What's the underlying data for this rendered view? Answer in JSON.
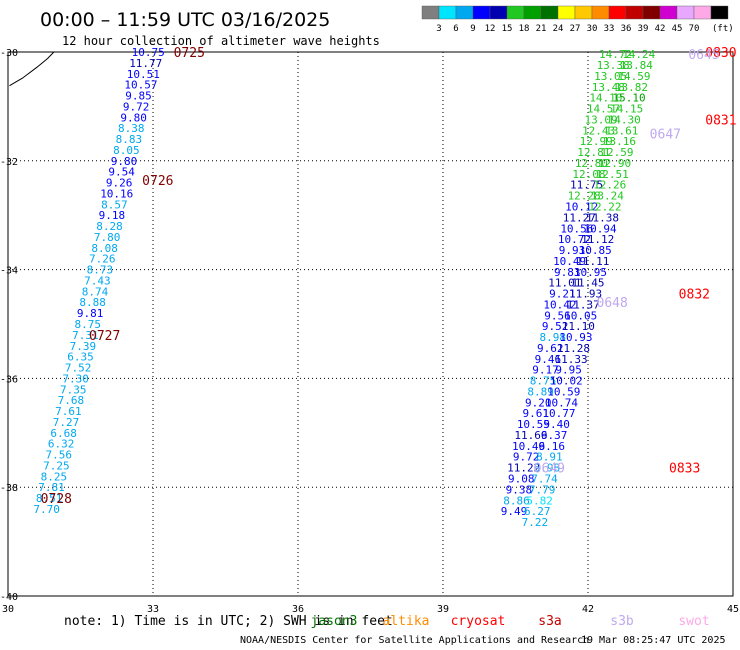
{
  "title": "00:00 – 11:59 UTC 03/16/2025",
  "subtitle": "12 hour collection of altimeter wave heights",
  "color_scale": {
    "unit": "(ft)",
    "labels": [
      "3",
      "6",
      "9",
      "12",
      "15",
      "18",
      "21",
      "24",
      "27",
      "30",
      "33",
      "36",
      "39",
      "42",
      "45",
      "70"
    ],
    "colors": [
      "#7f7f7f",
      "#00e5ff",
      "#00a8f0",
      "#0000ff",
      "#0000b0",
      "#22c822",
      "#00a000",
      "#007000",
      "#ffff00",
      "#ffc800",
      "#ff8c00",
      "#ff0000",
      "#c00000",
      "#800000",
      "#d000d0",
      "#e8a8ff",
      "#ffa8e8",
      "#000000"
    ]
  },
  "footer_note": "note: 1) Time is in UTC; 2) SWH is in feet",
  "credit": "NOAA/NESDIS Center for Satellite Applications and Research",
  "timestamp": "19 Mar 08:25:47 UTC 2025",
  "legend": [
    {
      "name": "jason3",
      "color": "#007000"
    },
    {
      "name": "altika",
      "color": "#ff8c00"
    },
    {
      "name": "cryosat",
      "color": "#ff0000"
    },
    {
      "name": "s3a",
      "color": "#c00000"
    },
    {
      "name": "s3b",
      "color": "#c0a8f0"
    },
    {
      "name": "swot",
      "color": "#ffa8e8"
    }
  ],
  "chart_data": {
    "type": "scatter",
    "title": "00:00 – 11:59 UTC 03/16/2025",
    "xlim": [
      30,
      45
    ],
    "ylim": [
      -40,
      -30
    ],
    "x_ticks": [
      "30",
      "33",
      "36",
      "39",
      "42",
      "45"
    ],
    "y_ticks": [
      "-30",
      "-32",
      "-34",
      "-36",
      "-38",
      "-40"
    ],
    "grid": true,
    "legend_position": "bottom",
    "coastline": [
      [
        30.03,
        -30.62
      ],
      [
        30.3,
        -30.48
      ],
      [
        30.6,
        -30.28
      ],
      [
        30.82,
        -30.12
      ],
      [
        30.95,
        -30.0
      ]
    ],
    "track_left": [
      {
        "x": 32.9,
        "y": -30.0,
        "v": "10.75",
        "c": "#0000ff"
      },
      {
        "x": 32.85,
        "y": -30.2,
        "v": "11.77",
        "c": "#0000b0"
      },
      {
        "x": 32.8,
        "y": -30.4,
        "v": "10.51",
        "c": "#0000ff"
      },
      {
        "x": 32.75,
        "y": -30.6,
        "v": "10.57",
        "c": "#0000ff"
      },
      {
        "x": 32.7,
        "y": -30.8,
        "v": "9.85",
        "c": "#0000ff"
      },
      {
        "x": 32.65,
        "y": -31.0,
        "v": "9.72",
        "c": "#0000ff"
      },
      {
        "x": 32.6,
        "y": -31.2,
        "v": "9.80",
        "c": "#0000ff"
      },
      {
        "x": 32.55,
        "y": -31.4,
        "v": "8.38",
        "c": "#00a8f0"
      },
      {
        "x": 32.5,
        "y": -31.6,
        "v": "8.83",
        "c": "#00a8f0"
      },
      {
        "x": 32.45,
        "y": -31.8,
        "v": "8.05",
        "c": "#00a8f0"
      },
      {
        "x": 32.4,
        "y": -32.0,
        "v": "9.80",
        "c": "#0000ff"
      },
      {
        "x": 32.35,
        "y": -32.2,
        "v": "9.54",
        "c": "#0000ff"
      },
      {
        "x": 32.3,
        "y": -32.4,
        "v": "9.26",
        "c": "#0000ff"
      },
      {
        "x": 32.25,
        "y": -32.6,
        "v": "10.16",
        "c": "#0000ff"
      },
      {
        "x": 32.2,
        "y": -32.8,
        "v": "8.57",
        "c": "#00a8f0"
      },
      {
        "x": 32.15,
        "y": -33.0,
        "v": "9.18",
        "c": "#0000ff"
      },
      {
        "x": 32.1,
        "y": -33.2,
        "v": "8.28",
        "c": "#00a8f0"
      },
      {
        "x": 32.05,
        "y": -33.4,
        "v": "7.80",
        "c": "#00a8f0"
      },
      {
        "x": 32.0,
        "y": -33.6,
        "v": "8.08",
        "c": "#00a8f0"
      },
      {
        "x": 31.95,
        "y": -33.8,
        "v": "7.26",
        "c": "#00a8f0"
      },
      {
        "x": 31.9,
        "y": -34.0,
        "v": "8.73",
        "c": "#00a8f0"
      },
      {
        "x": 31.85,
        "y": -34.2,
        "v": "7.43",
        "c": "#00a8f0"
      },
      {
        "x": 31.8,
        "y": -34.4,
        "v": "8.74",
        "c": "#00a8f0"
      },
      {
        "x": 31.75,
        "y": -34.6,
        "v": "8.88",
        "c": "#00a8f0"
      },
      {
        "x": 31.7,
        "y": -34.8,
        "v": "9.81",
        "c": "#0000ff"
      },
      {
        "x": 31.65,
        "y": -35.0,
        "v": "8.75",
        "c": "#00a8f0"
      },
      {
        "x": 31.6,
        "y": -35.2,
        "v": "7.31",
        "c": "#00a8f0"
      },
      {
        "x": 31.55,
        "y": -35.4,
        "v": "7.39",
        "c": "#00a8f0"
      },
      {
        "x": 31.5,
        "y": -35.6,
        "v": "6.35",
        "c": "#00a8f0"
      },
      {
        "x": 31.45,
        "y": -35.8,
        "v": "7.52",
        "c": "#00a8f0"
      },
      {
        "x": 31.4,
        "y": -36.0,
        "v": "7.30",
        "c": "#00a8f0"
      },
      {
        "x": 31.35,
        "y": -36.2,
        "v": "7.35",
        "c": "#00a8f0"
      },
      {
        "x": 31.3,
        "y": -36.4,
        "v": "7.68",
        "c": "#00a8f0"
      },
      {
        "x": 31.25,
        "y": -36.6,
        "v": "7.61",
        "c": "#00a8f0"
      },
      {
        "x": 31.2,
        "y": -36.8,
        "v": "7.27",
        "c": "#00a8f0"
      },
      {
        "x": 31.15,
        "y": -37.0,
        "v": "6.68",
        "c": "#00a8f0"
      },
      {
        "x": 31.1,
        "y": -37.2,
        "v": "6.32",
        "c": "#00a8f0"
      },
      {
        "x": 31.05,
        "y": -37.4,
        "v": "7.56",
        "c": "#00a8f0"
      },
      {
        "x": 31.0,
        "y": -37.6,
        "v": "7.25",
        "c": "#00a8f0"
      },
      {
        "x": 30.95,
        "y": -37.8,
        "v": "8.25",
        "c": "#00a8f0"
      },
      {
        "x": 30.9,
        "y": -38.0,
        "v": "7.81",
        "c": "#00a8f0"
      },
      {
        "x": 30.85,
        "y": -38.2,
        "v": "8.51",
        "c": "#00a8f0"
      },
      {
        "x": 30.8,
        "y": -38.4,
        "v": "7.70",
        "c": "#00a8f0"
      }
    ],
    "track_left_ylim_fix": [
      -30.0,
      -40.0
    ],
    "track_right_a": [
      {
        "x": 42.57,
        "y": -30.04,
        "v": "14.72",
        "c": "#22c822"
      },
      {
        "x": 42.52,
        "y": -30.24,
        "v": "13.38",
        "c": "#22c822"
      },
      {
        "x": 42.47,
        "y": -30.44,
        "v": "13.05",
        "c": "#22c822"
      },
      {
        "x": 42.42,
        "y": -30.64,
        "v": "13.48",
        "c": "#22c822"
      },
      {
        "x": 42.37,
        "y": -30.84,
        "v": "14.10",
        "c": "#22c822"
      },
      {
        "x": 42.32,
        "y": -31.04,
        "v": "14.57",
        "c": "#22c822"
      },
      {
        "x": 42.27,
        "y": -31.24,
        "v": "13.09",
        "c": "#22c822"
      },
      {
        "x": 42.22,
        "y": -31.44,
        "v": "12.43",
        "c": "#22c822"
      },
      {
        "x": 42.17,
        "y": -31.64,
        "v": "12.99",
        "c": "#22c822"
      },
      {
        "x": 42.12,
        "y": -31.84,
        "v": "12.81",
        "c": "#22c822"
      },
      {
        "x": 42.07,
        "y": -32.04,
        "v": "12.80",
        "c": "#22c822"
      },
      {
        "x": 42.02,
        "y": -32.24,
        "v": "12.08",
        "c": "#22c822"
      },
      {
        "x": 41.97,
        "y": -32.44,
        "v": "11.75",
        "c": "#0000b0"
      },
      {
        "x": 41.92,
        "y": -32.64,
        "v": "12.28",
        "c": "#22c822"
      },
      {
        "x": 41.87,
        "y": -32.84,
        "v": "10.12",
        "c": "#0000ff"
      },
      {
        "x": 41.82,
        "y": -33.04,
        "v": "11.27",
        "c": "#0000b0"
      },
      {
        "x": 41.77,
        "y": -33.24,
        "v": "10.56",
        "c": "#0000ff"
      },
      {
        "x": 41.72,
        "y": -33.44,
        "v": "10.72",
        "c": "#0000ff"
      },
      {
        "x": 41.67,
        "y": -33.64,
        "v": "9.93",
        "c": "#0000ff"
      },
      {
        "x": 41.62,
        "y": -33.84,
        "v": "10.49",
        "c": "#0000ff"
      },
      {
        "x": 41.57,
        "y": -34.04,
        "v": "9.83",
        "c": "#0000ff"
      },
      {
        "x": 41.52,
        "y": -34.24,
        "v": "11.01",
        "c": "#0000b0"
      },
      {
        "x": 41.47,
        "y": -34.44,
        "v": "9.21",
        "c": "#0000ff"
      },
      {
        "x": 41.42,
        "y": -34.64,
        "v": "10.42",
        "c": "#0000ff"
      },
      {
        "x": 41.37,
        "y": -34.84,
        "v": "9.56",
        "c": "#0000ff"
      },
      {
        "x": 41.32,
        "y": -35.04,
        "v": "9.52",
        "c": "#0000ff"
      },
      {
        "x": 41.27,
        "y": -35.24,
        "v": "8.98",
        "c": "#00a8f0"
      },
      {
        "x": 41.22,
        "y": -35.44,
        "v": "9.62",
        "c": "#0000ff"
      },
      {
        "x": 41.17,
        "y": -35.64,
        "v": "9.46",
        "c": "#0000ff"
      },
      {
        "x": 41.12,
        "y": -35.84,
        "v": "9.17",
        "c": "#0000ff"
      },
      {
        "x": 41.07,
        "y": -36.04,
        "v": "8.75",
        "c": "#00a8f0"
      },
      {
        "x": 41.02,
        "y": -36.24,
        "v": "8.89",
        "c": "#00a8f0"
      },
      {
        "x": 40.97,
        "y": -36.44,
        "v": "9.20",
        "c": "#0000ff"
      },
      {
        "x": 40.92,
        "y": -36.64,
        "v": "9.61",
        "c": "#0000ff"
      },
      {
        "x": 40.87,
        "y": -36.84,
        "v": "10.55",
        "c": "#0000ff"
      },
      {
        "x": 40.82,
        "y": -37.04,
        "v": "11.66",
        "c": "#0000b0"
      },
      {
        "x": 40.77,
        "y": -37.24,
        "v": "10.46",
        "c": "#0000ff"
      },
      {
        "x": 40.72,
        "y": -37.44,
        "v": "9.72",
        "c": "#0000ff"
      },
      {
        "x": 40.67,
        "y": -37.64,
        "v": "11.22",
        "c": "#0000b0"
      },
      {
        "x": 40.62,
        "y": -37.84,
        "v": "9.08",
        "c": "#0000ff"
      },
      {
        "x": 40.57,
        "y": -38.04,
        "v": "9.38",
        "c": "#0000ff"
      },
      {
        "x": 40.52,
        "y": -38.24,
        "v": "8.86",
        "c": "#00a8f0"
      },
      {
        "x": 40.47,
        "y": -38.44,
        "v": "9.49",
        "c": "#0000ff"
      }
    ],
    "track_right_b": [
      {
        "x": 43.05,
        "y": -30.04,
        "v": "14.24",
        "c": "#22c822"
      },
      {
        "x": 43.0,
        "y": -30.24,
        "v": "13.84",
        "c": "#22c822"
      },
      {
        "x": 42.95,
        "y": -30.44,
        "v": "14.59",
        "c": "#22c822"
      },
      {
        "x": 42.9,
        "y": -30.64,
        "v": "13.82",
        "c": "#22c822"
      },
      {
        "x": 42.85,
        "y": -30.84,
        "v": "15.10",
        "c": "#00a000"
      },
      {
        "x": 42.8,
        "y": -31.04,
        "v": "14.15",
        "c": "#22c822"
      },
      {
        "x": 42.75,
        "y": -31.24,
        "v": "14.30",
        "c": "#22c822"
      },
      {
        "x": 42.7,
        "y": -31.44,
        "v": "13.61",
        "c": "#22c822"
      },
      {
        "x": 42.65,
        "y": -31.64,
        "v": "13.16",
        "c": "#22c822"
      },
      {
        "x": 42.6,
        "y": -31.84,
        "v": "12.59",
        "c": "#22c822"
      },
      {
        "x": 42.55,
        "y": -32.04,
        "v": "12.90",
        "c": "#22c822"
      },
      {
        "x": 42.5,
        "y": -32.24,
        "v": "12.51",
        "c": "#22c822"
      },
      {
        "x": 42.45,
        "y": -32.44,
        "v": "12.26",
        "c": "#22c822"
      },
      {
        "x": 42.4,
        "y": -32.64,
        "v": "13.24",
        "c": "#22c822"
      },
      {
        "x": 42.35,
        "y": -32.84,
        "v": "12.22",
        "c": "#22c822"
      },
      {
        "x": 42.3,
        "y": -33.04,
        "v": "11.38",
        "c": "#0000b0"
      },
      {
        "x": 42.25,
        "y": -33.24,
        "v": "10.94",
        "c": "#0000ff"
      },
      {
        "x": 42.2,
        "y": -33.44,
        "v": "11.12",
        "c": "#0000b0"
      },
      {
        "x": 42.15,
        "y": -33.64,
        "v": "10.85",
        "c": "#0000ff"
      },
      {
        "x": 42.1,
        "y": -33.84,
        "v": "11.11",
        "c": "#0000b0"
      },
      {
        "x": 42.05,
        "y": -34.04,
        "v": "10.95",
        "c": "#0000ff"
      },
      {
        "x": 42.0,
        "y": -34.24,
        "v": "11.45",
        "c": "#0000b0"
      },
      {
        "x": 41.95,
        "y": -34.44,
        "v": "11.93",
        "c": "#0000b0"
      },
      {
        "x": 41.9,
        "y": -34.64,
        "v": "11.37",
        "c": "#0000b0"
      },
      {
        "x": 41.85,
        "y": -34.84,
        "v": "10.05",
        "c": "#0000ff"
      },
      {
        "x": 41.8,
        "y": -35.04,
        "v": "11.10",
        "c": "#0000b0"
      },
      {
        "x": 41.75,
        "y": -35.24,
        "v": "10.93",
        "c": "#0000ff"
      },
      {
        "x": 41.7,
        "y": -35.44,
        "v": "11.28",
        "c": "#0000b0"
      },
      {
        "x": 41.65,
        "y": -35.64,
        "v": "11.33",
        "c": "#0000b0"
      },
      {
        "x": 41.6,
        "y": -35.84,
        "v": "9.95",
        "c": "#0000ff"
      },
      {
        "x": 41.55,
        "y": -36.04,
        "v": "10.02",
        "c": "#0000ff"
      },
      {
        "x": 41.5,
        "y": -36.24,
        "v": "10.59",
        "c": "#0000ff"
      },
      {
        "x": 41.45,
        "y": -36.44,
        "v": "10.74",
        "c": "#0000ff"
      },
      {
        "x": 41.4,
        "y": -36.64,
        "v": "10.77",
        "c": "#0000ff"
      },
      {
        "x": 41.35,
        "y": -36.84,
        "v": "9.40",
        "c": "#0000ff"
      },
      {
        "x": 41.3,
        "y": -37.04,
        "v": "9.37",
        "c": "#0000ff"
      },
      {
        "x": 41.25,
        "y": -37.24,
        "v": "9.16",
        "c": "#0000ff"
      },
      {
        "x": 41.2,
        "y": -37.44,
        "v": "8.91",
        "c": "#00a8f0"
      },
      {
        "x": 41.15,
        "y": -37.64,
        "v": "6.98",
        "c": "#00a8f0"
      },
      {
        "x": 41.1,
        "y": -37.84,
        "v": "7.74",
        "c": "#00a8f0"
      },
      {
        "x": 41.05,
        "y": -38.04,
        "v": "7.79",
        "c": "#00a8f0"
      },
      {
        "x": 41.0,
        "y": -38.24,
        "v": "5.82",
        "c": "#00e5ff"
      },
      {
        "x": 40.95,
        "y": -38.44,
        "v": "6.27",
        "c": "#00a8f0"
      },
      {
        "x": 40.9,
        "y": -38.64,
        "v": "7.22",
        "c": "#00a8f0"
      }
    ],
    "time_labels": [
      {
        "text": "0725",
        "x": 33.75,
        "y": -30.0,
        "color": "#800000"
      },
      {
        "text": "0726",
        "x": 33.1,
        "y": -32.35,
        "color": "#800000"
      },
      {
        "text": "0727",
        "x": 32.0,
        "y": -35.2,
        "color": "#800000"
      },
      {
        "text": "0728",
        "x": 31.0,
        "y": -38.2,
        "color": "#800000"
      },
      {
        "text": "0830",
        "x": 44.75,
        "y": -30.0,
        "color": "#ff0000"
      },
      {
        "text": "0831",
        "x": 44.75,
        "y": -31.24,
        "color": "#ff0000"
      },
      {
        "text": "0832",
        "x": 44.2,
        "y": -34.44,
        "color": "#ff0000"
      },
      {
        "text": "0833",
        "x": 44.0,
        "y": -37.64,
        "color": "#ff0000"
      },
      {
        "text": "0645",
        "x": 44.4,
        "y": -30.04,
        "color": "#c0a8f0"
      },
      {
        "text": "0647",
        "x": 43.6,
        "y": -31.5,
        "color": "#c0a8f0"
      },
      {
        "text": "0648",
        "x": 42.5,
        "y": -34.6,
        "color": "#c0a8f0"
      },
      {
        "text": "0649",
        "x": 41.2,
        "y": -37.64,
        "color": "#c0a8f0"
      }
    ]
  }
}
